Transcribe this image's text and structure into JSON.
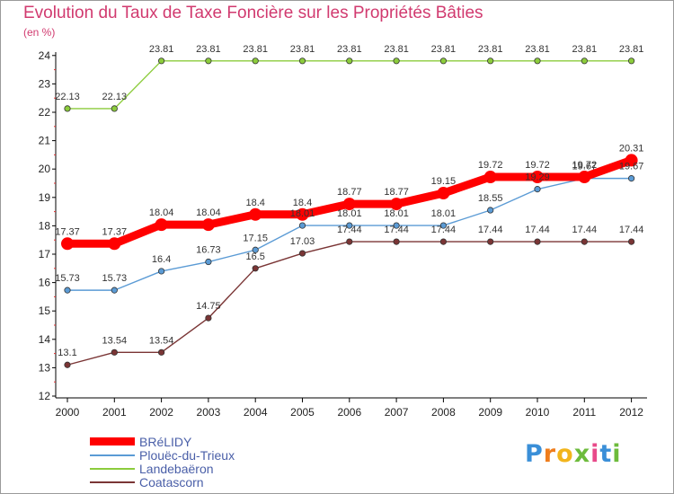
{
  "chart_data": {
    "type": "line",
    "title": "Evolution du Taux de Taxe Foncière sur les Propriétés Bâties",
    "ylabel": "(en %)",
    "xlabel": "",
    "categories": [
      "2000",
      "2001",
      "2002",
      "2003",
      "2004",
      "2005",
      "2006",
      "2007",
      "2008",
      "2009",
      "2010",
      "2011",
      "2012"
    ],
    "ylim": [
      12,
      24
    ],
    "yticks": [
      "12",
      "13",
      "14",
      "15",
      "16",
      "17",
      "18",
      "19",
      "20",
      "21",
      "22",
      "23",
      "24"
    ],
    "grid": false,
    "legend_position": "bottom-left",
    "series": [
      {
        "name": "BRéLIDY",
        "color": "#ff0000",
        "emphasis": true,
        "values": [
          17.37,
          17.37,
          18.04,
          18.04,
          18.4,
          18.4,
          18.77,
          18.77,
          19.15,
          19.72,
          19.72,
          19.72,
          20.31
        ],
        "labels": [
          "17.37",
          "17.37",
          "18.04",
          "18.04",
          "18.4",
          "18.4",
          "18.77",
          "18.77",
          "19.15",
          "19.72",
          "19.72",
          "19.72",
          "20.31"
        ]
      },
      {
        "name": "Plouëc-du-Trieux",
        "color": "#5b9bd5",
        "emphasis": false,
        "values": [
          15.73,
          15.73,
          16.4,
          16.73,
          17.15,
          18.01,
          18.01,
          18.01,
          18.01,
          18.55,
          19.29,
          19.67,
          19.67
        ],
        "labels": [
          "15.73",
          "15.73",
          "16.4",
          "16.73",
          "17.15",
          "18.01",
          "18.01",
          "18.01",
          "18.01",
          "18.55",
          "19.29",
          "19.67",
          "19.67"
        ]
      },
      {
        "name": "Landebaëron",
        "color": "#8ccc3c",
        "emphasis": false,
        "values": [
          22.13,
          22.13,
          23.81,
          23.81,
          23.81,
          23.81,
          23.81,
          23.81,
          23.81,
          23.81,
          23.81,
          23.81,
          23.81
        ],
        "labels": [
          "22.13",
          "22.13",
          "23.81",
          "23.81",
          "23.81",
          "23.81",
          "23.81",
          "23.81",
          "23.81",
          "23.81",
          "23.81",
          "23.81",
          "23.81"
        ]
      },
      {
        "name": "Coatascorn",
        "color": "#7a3535",
        "emphasis": false,
        "values": [
          13.1,
          13.54,
          13.54,
          14.75,
          16.5,
          17.03,
          17.44,
          17.44,
          17.44,
          17.44,
          17.44,
          17.44,
          17.44
        ],
        "labels": [
          "13.1",
          "13.54",
          "13.54",
          "14.75",
          "16.5",
          "17.03",
          "17.44",
          "17.44",
          "17.44",
          "17.44",
          "17.44",
          "17.44",
          "17.44"
        ]
      }
    ]
  },
  "logo": {
    "letters": [
      "P",
      "r",
      "o",
      "x",
      "i",
      "t",
      "i"
    ],
    "colors": [
      "#3a8fd8",
      "#ef7d1c",
      "#f2b51c",
      "#6dbb3c",
      "#e84a8a",
      "#3a8fd8",
      "#6dbb3c"
    ]
  }
}
